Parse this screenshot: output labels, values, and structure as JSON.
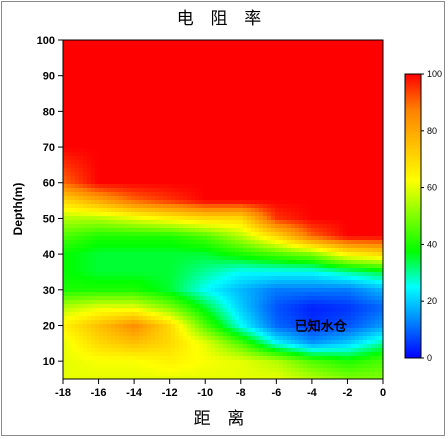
{
  "chart_data": {
    "type": "heatmap",
    "title": "电 阻 率",
    "xlabel": "距 离",
    "ylabel": "Depth(m)",
    "xlim": [
      -18,
      0
    ],
    "ylim": [
      5,
      100
    ],
    "x_ticks": [
      -18,
      -16,
      -14,
      -12,
      -10,
      -8,
      -6,
      -4,
      -2,
      0
    ],
    "y_ticks": [
      10,
      20,
      30,
      40,
      50,
      60,
      70,
      80,
      90,
      100
    ],
    "colorbar": {
      "min": 0,
      "max": 100,
      "ticks": [
        0,
        20,
        40,
        60,
        80,
        100
      ],
      "placement": "right"
    },
    "colormap": [
      "#0000ff",
      "#0080ff",
      "#00ffff",
      "#00ff00",
      "#80ff00",
      "#ffff00",
      "#ffc000",
      "#ff8000",
      "#ff0000"
    ],
    "x": [
      -18,
      -16,
      -14,
      -12,
      -10,
      -8,
      -6,
      -4,
      -2,
      0
    ],
    "y": [
      100,
      90,
      80,
      70,
      60,
      55,
      50,
      45,
      40,
      35,
      30,
      25,
      20,
      15,
      10,
      5
    ],
    "z": [
      [
        100,
        100,
        100,
        100,
        100,
        100,
        100,
        100,
        100,
        100
      ],
      [
        100,
        100,
        100,
        100,
        100,
        100,
        100,
        100,
        100,
        100
      ],
      [
        100,
        100,
        100,
        100,
        100,
        100,
        100,
        100,
        100,
        100
      ],
      [
        100,
        100,
        100,
        100,
        100,
        100,
        100,
        100,
        100,
        100
      ],
      [
        90,
        100,
        100,
        100,
        100,
        100,
        100,
        100,
        100,
        100
      ],
      [
        70,
        80,
        90,
        95,
        100,
        100,
        100,
        100,
        100,
        100
      ],
      [
        55,
        55,
        60,
        65,
        70,
        70,
        95,
        100,
        100,
        100
      ],
      [
        45,
        40,
        40,
        40,
        45,
        55,
        70,
        90,
        100,
        100
      ],
      [
        38,
        35,
        35,
        35,
        35,
        40,
        45,
        50,
        65,
        70
      ],
      [
        38,
        35,
        35,
        35,
        30,
        25,
        25,
        25,
        30,
        35
      ],
      [
        40,
        40,
        40,
        35,
        25,
        18,
        12,
        12,
        12,
        18
      ],
      [
        55,
        60,
        60,
        50,
        35,
        20,
        8,
        3,
        5,
        10
      ],
      [
        65,
        75,
        85,
        70,
        45,
        25,
        10,
        5,
        8,
        15
      ],
      [
        60,
        70,
        75,
        70,
        60,
        45,
        25,
        15,
        20,
        30
      ],
      [
        60,
        62,
        62,
        65,
        62,
        60,
        55,
        45,
        40,
        45
      ],
      [
        60,
        60,
        60,
        60,
        60,
        60,
        60,
        55,
        50,
        50
      ]
    ],
    "annotations": [
      {
        "text": "已知水仓",
        "x": -3.5,
        "y": 20
      }
    ]
  }
}
